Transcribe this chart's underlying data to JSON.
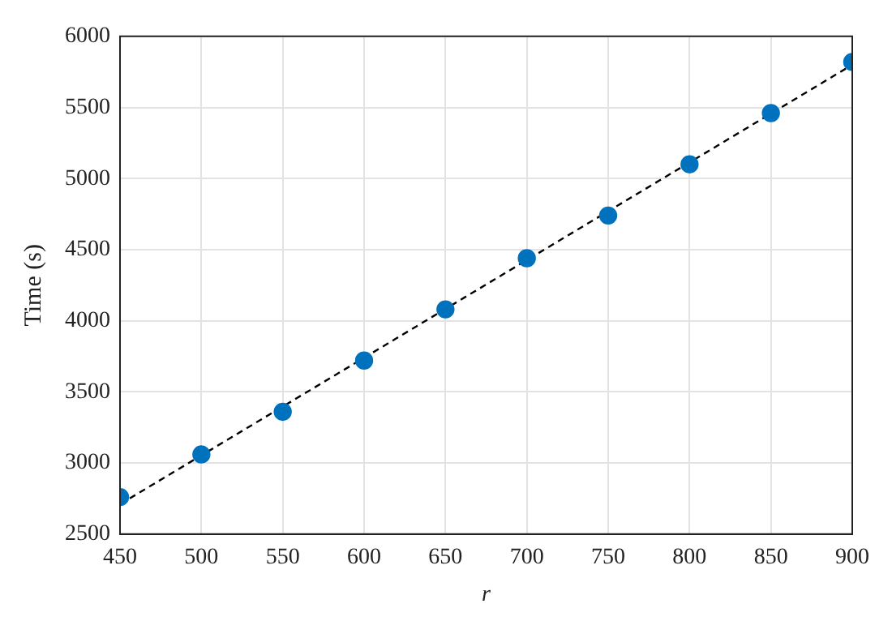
{
  "chart_data": {
    "type": "scatter",
    "xlabel": "r",
    "ylabel": "Time (s)",
    "x": [
      450,
      500,
      550,
      600,
      650,
      700,
      750,
      800,
      850,
      900
    ],
    "series": [
      {
        "color": "#0072bd",
        "marker": "circle",
        "values": [
          2760,
          3060,
          3360,
          3720,
          4080,
          4440,
          4740,
          5100,
          5460,
          5820
        ]
      },
      {
        "type": "line",
        "color": "#000000",
        "marker": "none",
        "line_style": "dashed",
        "x": [
          450,
          900
        ],
        "values": [
          2710,
          5800
        ]
      }
    ],
    "xlim": [
      450,
      900
    ],
    "xticks": [
      450,
      500,
      550,
      600,
      650,
      700,
      750,
      800,
      850,
      900
    ],
    "ylim": [
      2500,
      6000
    ],
    "yticks": [
      2500,
      3000,
      3500,
      4000,
      4500,
      5000,
      5500,
      6000
    ],
    "grid": true,
    "legend": false
  }
}
